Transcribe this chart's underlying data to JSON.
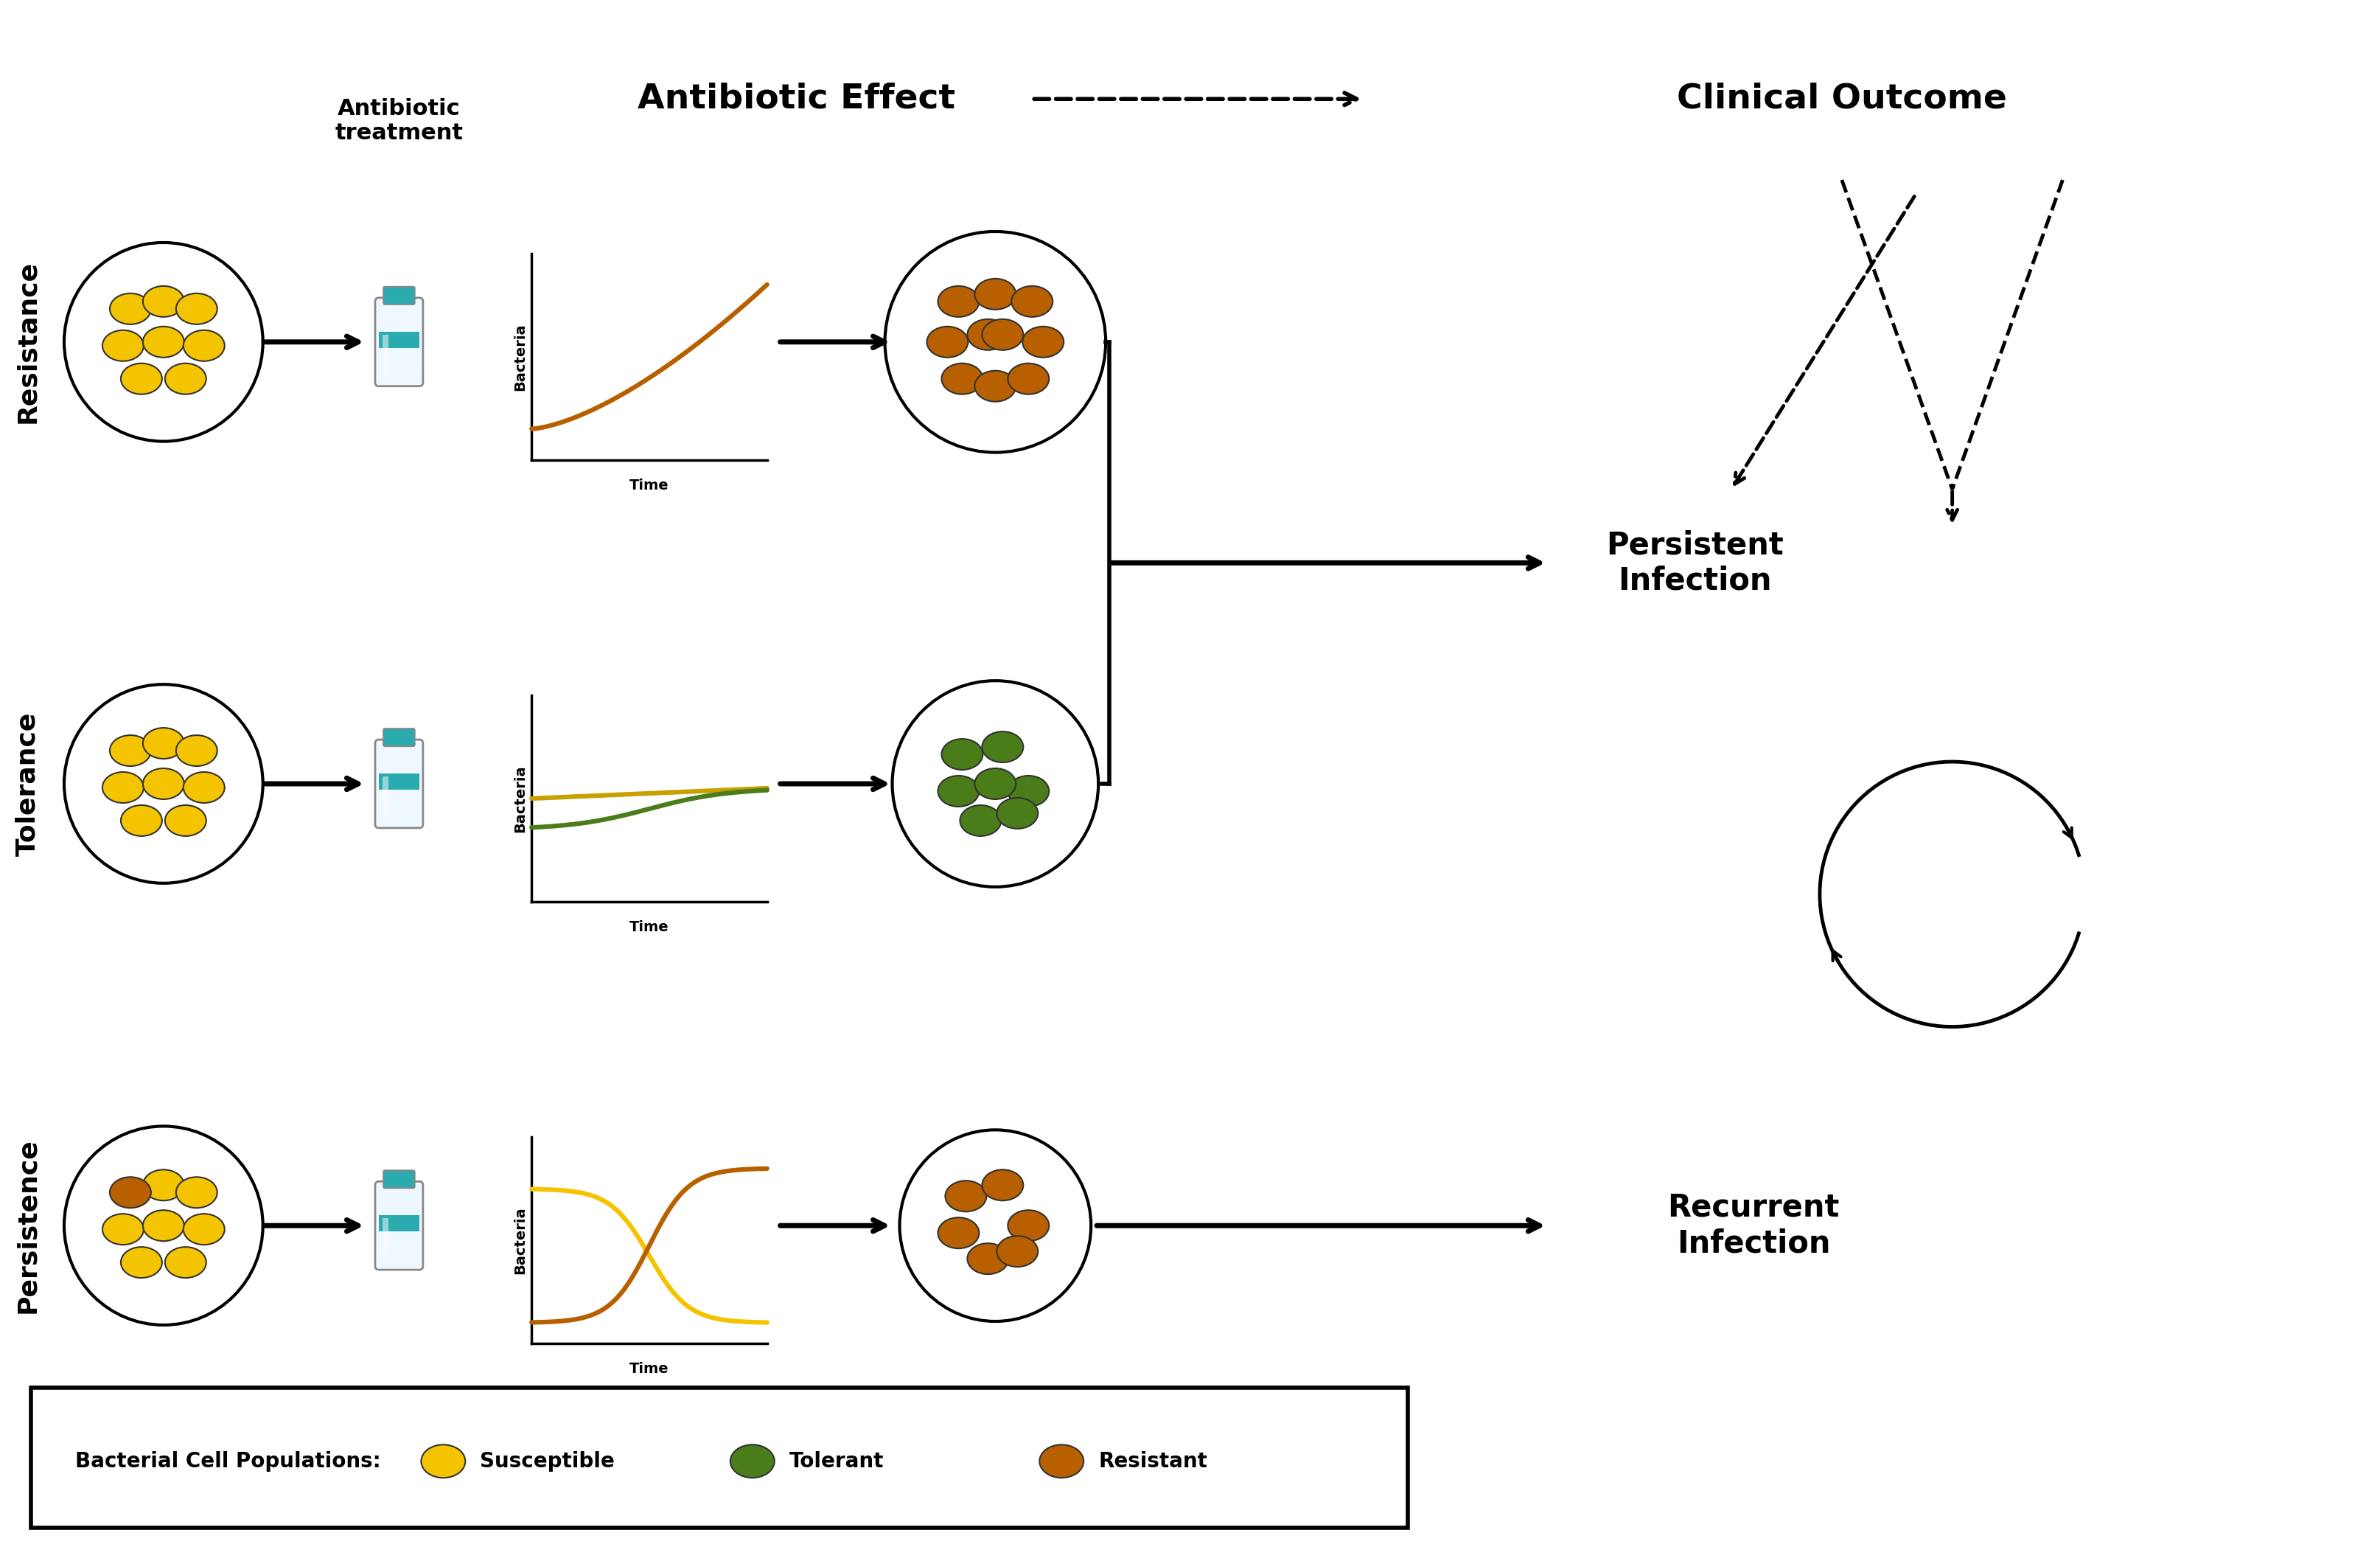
{
  "title_antibiotic_effect": "Antibiotic Effect",
  "title_clinical_outcome": "Clinical Outcome",
  "title_antibiotic_treatment": "Antibiotic\ntreatment",
  "row_labels": [
    "Resistance",
    "Tolerance",
    "Persistence"
  ],
  "outcome_labels": [
    "Persistent\nInfection",
    "Recurrent\nInfection"
  ],
  "legend_title": "Bacterial Cell Populations:",
  "legend_items": [
    "Susceptible",
    "Tolerant",
    "Resistant"
  ],
  "susceptible_color": "#F5C400",
  "tolerant_color": "#4A7C1A",
  "resistant_color": "#B86000",
  "background_color": "#FFFFFF",
  "text_color": "#000000",
  "graph_axes_color": "#000000",
  "resistance_curve_color": "#B86000",
  "tolerance_curve1_color": "#C8A000",
  "tolerance_curve2_color": "#4A7C1A",
  "persistence_curve1_color": "#F5C400",
  "persistence_curve2_color": "#B86000"
}
